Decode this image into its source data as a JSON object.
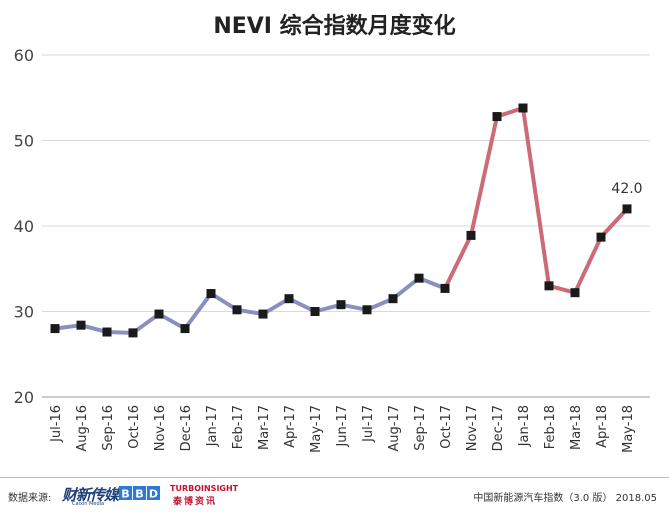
{
  "chart_data": {
    "type": "line",
    "title": "NEVI 综合指数月度变化",
    "categories": [
      "Jul-16",
      "Aug-16",
      "Sep-16",
      "Oct-16",
      "Nov-16",
      "Dec-16",
      "Jan-17",
      "Feb-17",
      "Mar-17",
      "Apr-17",
      "May-17",
      "Jun-17",
      "Jul-17",
      "Aug-17",
      "Sep-17",
      "Oct-17",
      "Nov-17",
      "Dec-17",
      "Jan-18",
      "Feb-18",
      "Mar-18",
      "Apr-18",
      "May-18"
    ],
    "values": [
      28.0,
      28.4,
      27.6,
      27.5,
      29.7,
      28.0,
      32.1,
      30.2,
      29.7,
      31.5,
      30.0,
      30.8,
      30.2,
      31.5,
      33.9,
      32.7,
      38.9,
      52.8,
      53.8,
      33.0,
      32.2,
      38.7,
      42.0
    ],
    "ylim": [
      20,
      60
    ],
    "yticks": [
      20,
      30,
      40,
      50,
      60
    ],
    "grid": true,
    "xlabel": "",
    "ylabel": "",
    "annotations": [
      {
        "index": 22,
        "text": "42.0"
      }
    ],
    "colors": {
      "early_line": "#8b8fbf",
      "late_line": "#cc6a78",
      "marker": "#1a1a1a",
      "grid": "#d9d9d9"
    }
  },
  "footer": {
    "source_label": "数据来源:",
    "logos": {
      "caixin": "财新传媒",
      "caixin_sub": "Caixin Media",
      "bbd": "BBD",
      "turbo": "TURBOINSIGHT",
      "turbo_sub": "泰博资讯"
    },
    "right_text": "中国新能源汽车指数（3.0 版） 2018.05"
  }
}
